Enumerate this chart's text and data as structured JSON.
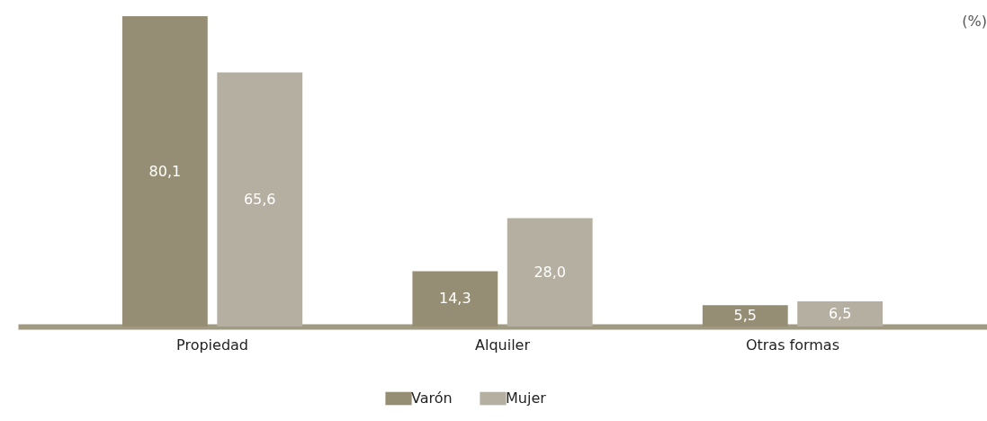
{
  "chart_data": {
    "type": "bar",
    "categories": [
      "Propiedad",
      "Alquiler",
      "Otras formas"
    ],
    "series": [
      {
        "name": "Varón",
        "color": "#968e74",
        "values": [
          80.1,
          14.3,
          5.5
        ],
        "value_labels": [
          "80,1",
          "14,3",
          "5,5"
        ]
      },
      {
        "name": "Mujer",
        "color": "#b5afa1",
        "values": [
          65.6,
          28.0,
          6.5
        ],
        "value_labels": [
          "65,6",
          "28,0",
          "6,5"
        ]
      }
    ],
    "annotations": [
      "(%)"
    ],
    "legend": "bottom"
  }
}
